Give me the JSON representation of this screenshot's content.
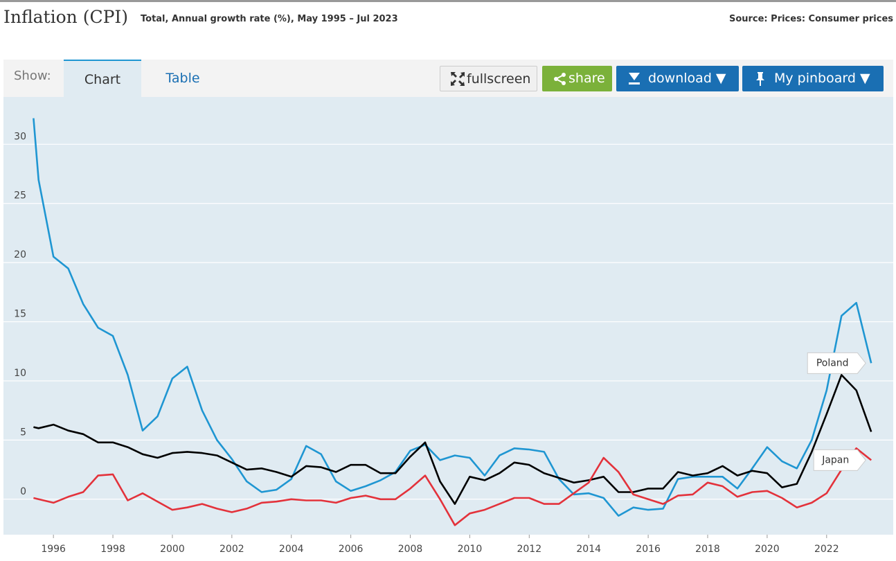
{
  "header": {
    "title": "Inflation (CPI)",
    "subtitle": "Total, Annual growth rate (%), May 1995 – Jul 2023",
    "source": "Source: Prices: Consumer prices"
  },
  "toolbar": {
    "show": "Show:",
    "tabs": [
      "Chart",
      "Table"
    ],
    "buttons": {
      "fullscreen": "fullscreen",
      "share": "share",
      "download": "download ▼",
      "pinboard": "My pinboard ▼"
    }
  },
  "chart_data": {
    "type": "line",
    "x": [
      1995.33,
      1995.5,
      1996.0,
      1996.5,
      1997.0,
      1997.5,
      1998.0,
      1998.5,
      1999.0,
      1999.5,
      2000.0,
      2000.5,
      2001.0,
      2001.5,
      2002.0,
      2002.5,
      2003.0,
      2003.5,
      2004.0,
      2004.5,
      2005.0,
      2005.5,
      2006.0,
      2006.5,
      2007.0,
      2007.5,
      2008.0,
      2008.5,
      2009.0,
      2009.5,
      2010.0,
      2010.5,
      2011.0,
      2011.5,
      2012.0,
      2012.5,
      2013.0,
      2013.5,
      2014.0,
      2014.5,
      2015.0,
      2015.5,
      2016.0,
      2016.5,
      2017.0,
      2017.5,
      2018.0,
      2018.5,
      2019.0,
      2019.5,
      2020.0,
      2020.5,
      2021.0,
      2021.5,
      2022.0,
      2022.5,
      2023.0,
      2023.5
    ],
    "series": [
      {
        "name": "Poland",
        "color": "#1f96d2",
        "values": [
          32.2,
          27,
          20.5,
          19.5,
          16.5,
          14.5,
          13.8,
          10.5,
          5.8,
          7,
          10.2,
          11.2,
          7.5,
          5,
          3.4,
          1.5,
          0.6,
          0.8,
          1.7,
          4.5,
          3.8,
          1.5,
          0.7,
          1.1,
          1.6,
          2.3,
          4.1,
          4.6,
          3.3,
          3.7,
          3.5,
          2,
          3.7,
          4.3,
          4.2,
          4,
          1.7,
          0.4,
          0.5,
          0.1,
          -1.4,
          -0.7,
          -0.9,
          -0.8,
          1.7,
          1.9,
          1.9,
          1.9,
          0.9,
          2.6,
          4.4,
          3.2,
          2.6,
          5,
          9.2,
          15.5,
          16.6,
          11.5
        ]
      },
      {
        "color": "#000000",
        "values": [
          6.1,
          6.0,
          6.3,
          5.8,
          5.5,
          4.8,
          4.8,
          4.4,
          3.8,
          3.5,
          3.9,
          4.0,
          3.9,
          3.7,
          3.1,
          2.5,
          2.6,
          2.3,
          1.9,
          2.8,
          2.7,
          2.3,
          2.9,
          2.9,
          2.2,
          2.2,
          3.6,
          4.8,
          1.5,
          -0.4,
          1.9,
          1.6,
          2.2,
          3.1,
          2.9,
          2.2,
          1.8,
          1.4,
          1.6,
          1.9,
          0.6,
          0.6,
          0.9,
          0.9,
          2.3,
          2.0,
          2.2,
          2.8,
          2.0,
          2.4,
          2.2,
          1.0,
          1.3,
          4.0,
          7.2,
          10.5,
          9.2,
          5.7
        ]
      },
      {
        "name": "Japan",
        "color": "#e3323b",
        "values": [
          0.1,
          0.0,
          -0.3,
          0.2,
          0.6,
          2.0,
          2.1,
          -0.1,
          0.5,
          -0.2,
          -0.9,
          -0.7,
          -0.4,
          -0.8,
          -1.1,
          -0.8,
          -0.3,
          -0.2,
          0.0,
          -0.1,
          -0.1,
          -0.3,
          0.1,
          0.3,
          0.0,
          0.0,
          0.9,
          2.0,
          0.0,
          -2.2,
          -1.2,
          -0.9,
          -0.4,
          0.1,
          0.1,
          -0.4,
          -0.4,
          0.5,
          1.4,
          3.5,
          2.3,
          0.4,
          0.0,
          -0.4,
          0.3,
          0.4,
          1.4,
          1.1,
          0.2,
          0.6,
          0.7,
          0.1,
          -0.7,
          -0.3,
          0.5,
          2.5,
          4.3,
          3.3
        ]
      }
    ],
    "xlim": [
      1994.32,
      2024.24
    ],
    "xticks": [
      1996,
      1998,
      2000,
      2002,
      2004,
      2006,
      2008,
      2010,
      2012,
      2014,
      2016,
      2018,
      2020,
      2022
    ],
    "ylim": [
      -3,
      34
    ],
    "yticks": [
      0,
      5,
      10,
      15,
      20,
      25,
      30
    ],
    "grid": true
  }
}
